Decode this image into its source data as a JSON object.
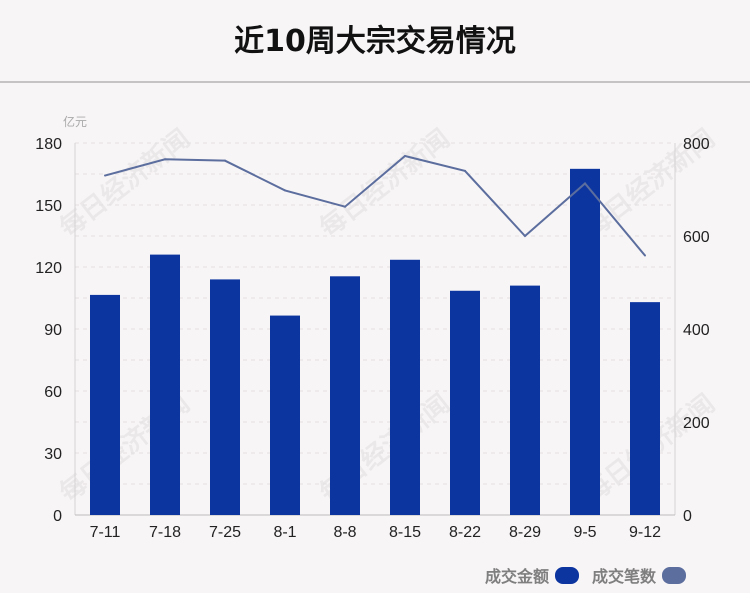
{
  "title": "近10周大宗交易情况",
  "watermark": "每日经济新闻",
  "chart_data": {
    "type": "bar",
    "title": "近10周大宗交易情况",
    "categories": [
      "7-11",
      "7-18",
      "7-25",
      "8-1",
      "8-8",
      "8-15",
      "8-22",
      "8-29",
      "9-5",
      "9-12"
    ],
    "left_axis": {
      "unit": "亿元",
      "ylim": [
        0,
        180
      ],
      "ticks": [
        "0",
        "30",
        "60",
        "90",
        "120",
        "150",
        "180"
      ]
    },
    "right_axis": {
      "ylim": [
        0,
        800
      ],
      "ticks": [
        "0",
        "200",
        "400",
        "600",
        "800"
      ]
    },
    "series": [
      {
        "name": "成交金额",
        "type": "bar",
        "axis": "left",
        "color": "#0d35a0",
        "values": [
          106.5,
          126,
          114,
          96.5,
          115.5,
          123.5,
          108.5,
          111,
          167.5,
          103
        ]
      },
      {
        "name": "成交笔数",
        "type": "line",
        "axis": "right",
        "color": "#5c6e9e",
        "values": [
          730,
          765,
          762,
          698,
          663,
          772,
          740,
          600,
          713,
          558
        ]
      }
    ],
    "grid": true,
    "legend": "bottom-right"
  }
}
